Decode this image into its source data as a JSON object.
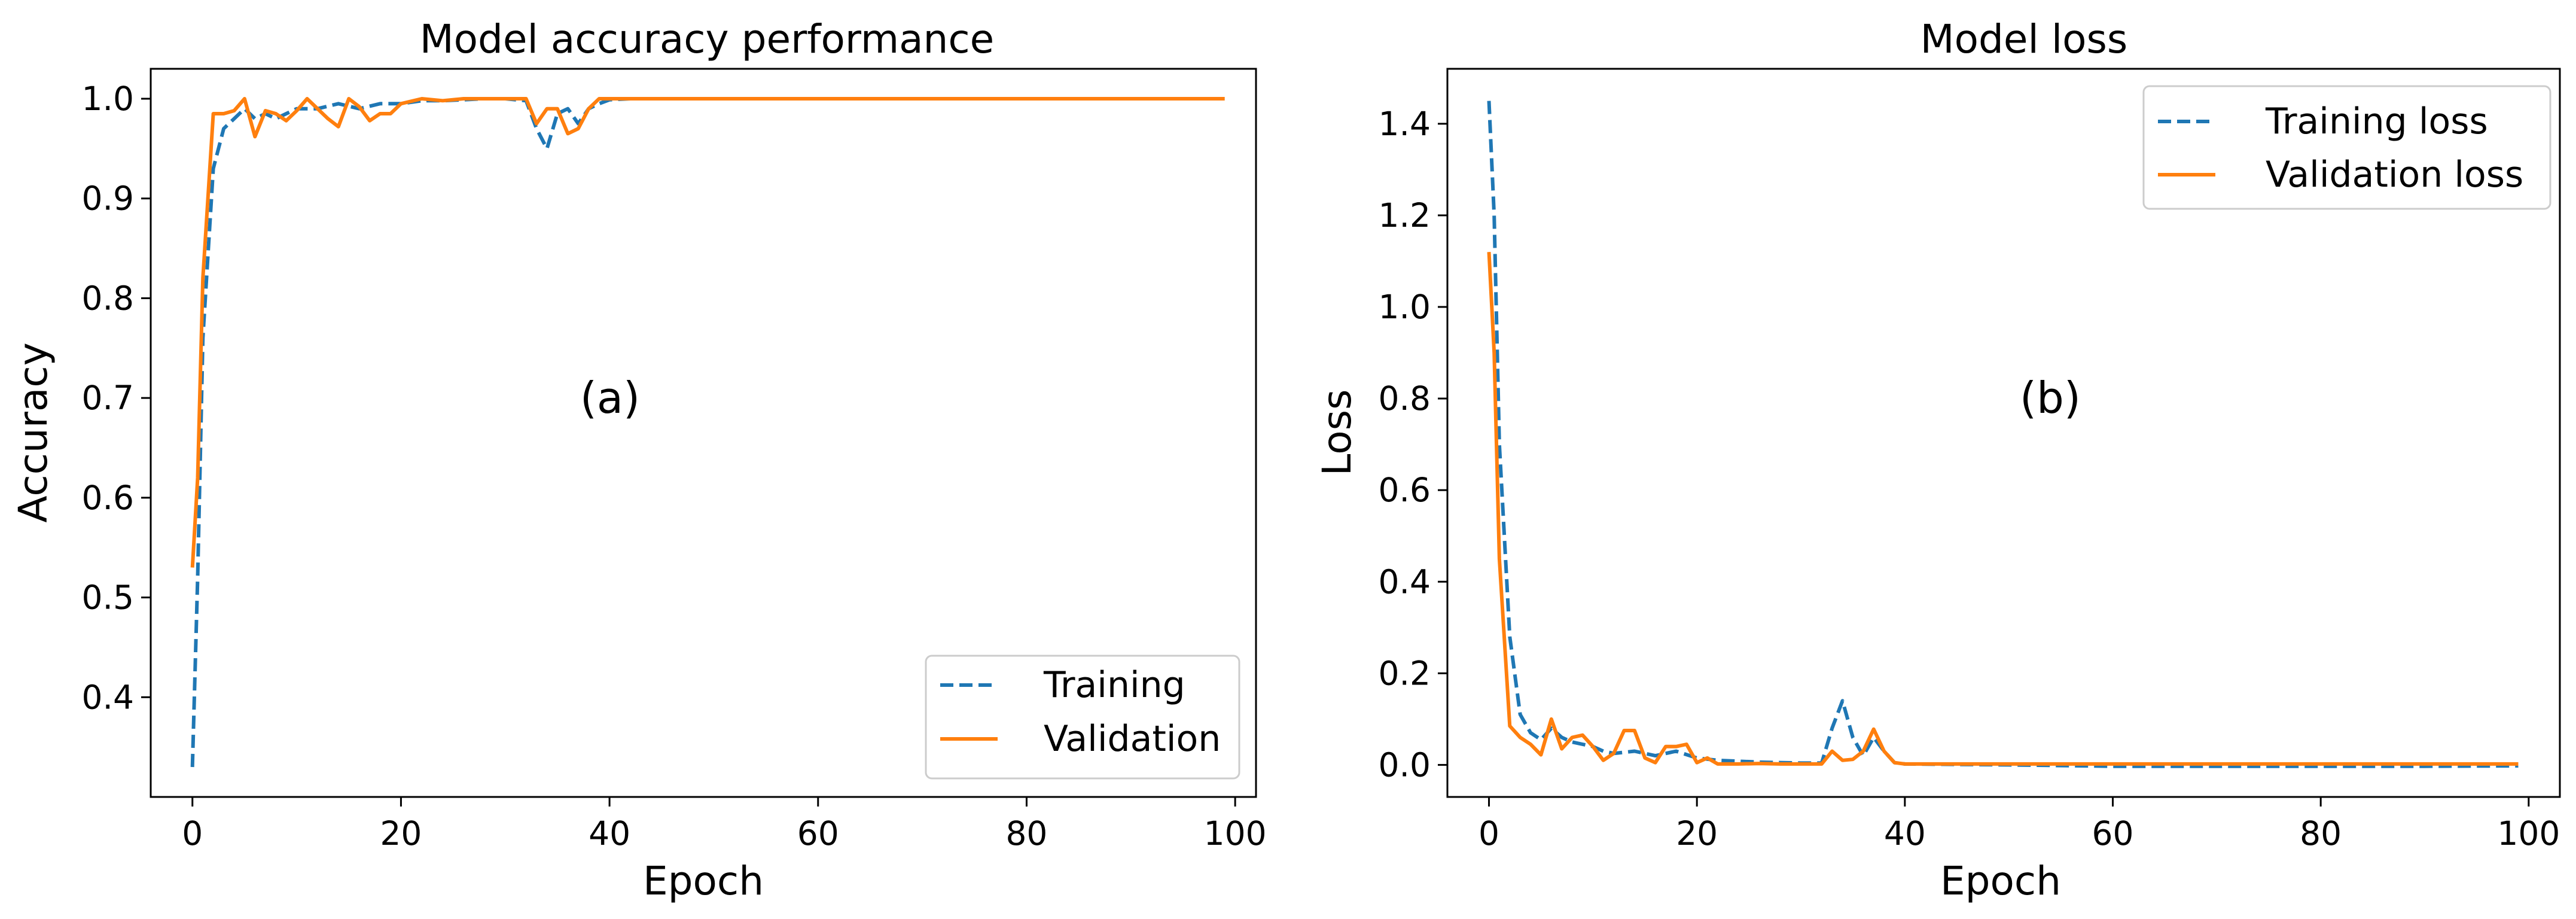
{
  "chart_data": [
    {
      "type": "line",
      "title": "Model accuracy performance",
      "xlabel": "Epoch",
      "ylabel": "Accuracy",
      "panel_label": "(a)",
      "xlim": [
        -4,
        102
      ],
      "ylim": [
        0.3,
        1.03
      ],
      "xticks": [
        0,
        20,
        40,
        60,
        80,
        100
      ],
      "yticks": [
        0.4,
        0.5,
        0.6,
        0.7,
        0.8,
        0.9,
        1.0
      ],
      "xtick_labels": [
        "0",
        "20",
        "40",
        "60",
        "80",
        "100"
      ],
      "ytick_labels": [
        "0.4",
        "0.5",
        "0.6",
        "0.7",
        "0.8",
        "0.9",
        "1.0"
      ],
      "legend_position": "lower-right",
      "series": [
        {
          "name": "Training",
          "color": "#1f77b4",
          "style": "dashed",
          "points": [
            [
              0,
              0.33
            ],
            [
              0.5,
              0.52
            ],
            [
              1,
              0.76
            ],
            [
              2,
              0.93
            ],
            [
              3,
              0.97
            ],
            [
              4,
              0.98
            ],
            [
              5,
              0.99
            ],
            [
              6,
              0.98
            ],
            [
              7,
              0.985
            ],
            [
              8,
              0.98
            ],
            [
              9,
              0.985
            ],
            [
              10,
              0.99
            ],
            [
              12,
              0.99
            ],
            [
              14,
              0.995
            ],
            [
              16,
              0.99
            ],
            [
              18,
              0.995
            ],
            [
              20,
              0.995
            ],
            [
              22,
              0.998
            ],
            [
              24,
              0.998
            ],
            [
              26,
              0.999
            ],
            [
              28,
              1.0
            ],
            [
              30,
              1.0
            ],
            [
              32,
              0.998
            ],
            [
              33,
              0.97
            ],
            [
              34,
              0.95
            ],
            [
              35,
              0.985
            ],
            [
              36,
              0.99
            ],
            [
              37,
              0.975
            ],
            [
              38,
              0.99
            ],
            [
              39,
              0.995
            ],
            [
              40,
              0.999
            ],
            [
              42,
              1.0
            ],
            [
              50,
              1.0
            ],
            [
              60,
              1.0
            ],
            [
              70,
              1.0
            ],
            [
              80,
              1.0
            ],
            [
              90,
              1.0
            ],
            [
              99,
              1.0
            ]
          ]
        },
        {
          "name": "Validation",
          "color": "#ff7f0e",
          "style": "solid",
          "points": [
            [
              0,
              0.53
            ],
            [
              0.5,
              0.62
            ],
            [
              1,
              0.82
            ],
            [
              2,
              0.985
            ],
            [
              3,
              0.985
            ],
            [
              4,
              0.988
            ],
            [
              5,
              1.0
            ],
            [
              6,
              0.962
            ],
            [
              7,
              0.988
            ],
            [
              8,
              0.985
            ],
            [
              9,
              0.978
            ],
            [
              10,
              0.988
            ],
            [
              11,
              1.0
            ],
            [
              12,
              0.99
            ],
            [
              13,
              0.98
            ],
            [
              14,
              0.972
            ],
            [
              15,
              1.0
            ],
            [
              16,
              0.992
            ],
            [
              17,
              0.978
            ],
            [
              18,
              0.985
            ],
            [
              19,
              0.985
            ],
            [
              20,
              0.995
            ],
            [
              22,
              1.0
            ],
            [
              24,
              0.998
            ],
            [
              26,
              1.0
            ],
            [
              28,
              1.0
            ],
            [
              30,
              1.0
            ],
            [
              32,
              1.0
            ],
            [
              33,
              0.975
            ],
            [
              34,
              0.99
            ],
            [
              35,
              0.99
            ],
            [
              36,
              0.965
            ],
            [
              37,
              0.97
            ],
            [
              38,
              0.99
            ],
            [
              39,
              1.0
            ],
            [
              40,
              1.0
            ],
            [
              50,
              1.0
            ],
            [
              60,
              1.0
            ],
            [
              70,
              1.0
            ],
            [
              80,
              1.0
            ],
            [
              90,
              1.0
            ],
            [
              99,
              1.0
            ]
          ]
        }
      ]
    },
    {
      "type": "line",
      "title": "Model loss",
      "xlabel": "Epoch",
      "ylabel": "Loss",
      "panel_label": "(b)",
      "xlim": [
        -4,
        103
      ],
      "ylim": [
        -0.07,
        1.52
      ],
      "xticks": [
        0,
        20,
        40,
        60,
        80,
        100
      ],
      "yticks": [
        0.0,
        0.2,
        0.4,
        0.6,
        0.8,
        1.0,
        1.2,
        1.4
      ],
      "xtick_labels": [
        "0",
        "20",
        "40",
        "60",
        "80",
        "100"
      ],
      "ytick_labels": [
        "0.0",
        "0.2",
        "0.4",
        "0.6",
        "0.8",
        "1.0",
        "1.2",
        "1.4"
      ],
      "legend_position": "upper-right",
      "series": [
        {
          "name": "Training loss",
          "color": "#1f77b4",
          "style": "dashed",
          "points": [
            [
              0,
              1.45
            ],
            [
              0.5,
              1.2
            ],
            [
              1,
              0.7
            ],
            [
              2,
              0.28
            ],
            [
              3,
              0.11
            ],
            [
              4,
              0.07
            ],
            [
              5,
              0.055
            ],
            [
              6,
              0.08
            ],
            [
              7,
              0.06
            ],
            [
              8,
              0.05
            ],
            [
              9,
              0.045
            ],
            [
              10,
              0.04
            ],
            [
              11,
              0.03
            ],
            [
              12,
              0.025
            ],
            [
              14,
              0.03
            ],
            [
              16,
              0.02
            ],
            [
              18,
              0.03
            ],
            [
              20,
              0.015
            ],
            [
              22,
              0.01
            ],
            [
              24,
              0.008
            ],
            [
              26,
              0.006
            ],
            [
              28,
              0.005
            ],
            [
              30,
              0.004
            ],
            [
              32,
              0.004
            ],
            [
              33,
              0.08
            ],
            [
              34,
              0.14
            ],
            [
              35,
              0.06
            ],
            [
              36,
              0.02
            ],
            [
              37,
              0.06
            ],
            [
              38,
              0.03
            ],
            [
              39,
              0.005
            ],
            [
              40,
              0.002
            ],
            [
              50,
              0.0
            ],
            [
              60,
              -0.003
            ],
            [
              70,
              -0.003
            ],
            [
              80,
              -0.003
            ],
            [
              90,
              -0.003
            ],
            [
              99,
              -0.002
            ]
          ]
        },
        {
          "name": "Validation loss",
          "color": "#ff7f0e",
          "style": "solid",
          "points": [
            [
              0,
              1.12
            ],
            [
              0.5,
              0.9
            ],
            [
              1,
              0.45
            ],
            [
              2,
              0.085
            ],
            [
              3,
              0.06
            ],
            [
              4,
              0.045
            ],
            [
              5,
              0.022
            ],
            [
              6,
              0.1
            ],
            [
              7,
              0.035
            ],
            [
              8,
              0.06
            ],
            [
              9,
              0.065
            ],
            [
              10,
              0.04
            ],
            [
              11,
              0.01
            ],
            [
              12,
              0.025
            ],
            [
              13,
              0.075
            ],
            [
              14,
              0.075
            ],
            [
              15,
              0.015
            ],
            [
              16,
              0.005
            ],
            [
              17,
              0.04
            ],
            [
              18,
              0.04
            ],
            [
              19,
              0.045
            ],
            [
              20,
              0.005
            ],
            [
              21,
              0.015
            ],
            [
              22,
              0.002
            ],
            [
              24,
              0.002
            ],
            [
              26,
              0.003
            ],
            [
              28,
              0.002
            ],
            [
              30,
              0.002
            ],
            [
              32,
              0.002
            ],
            [
              33,
              0.03
            ],
            [
              34,
              0.01
            ],
            [
              35,
              0.012
            ],
            [
              36,
              0.03
            ],
            [
              37,
              0.078
            ],
            [
              38,
              0.03
            ],
            [
              39,
              0.005
            ],
            [
              40,
              0.002
            ],
            [
              50,
              0.002
            ],
            [
              60,
              0.002
            ],
            [
              70,
              0.002
            ],
            [
              80,
              0.002
            ],
            [
              90,
              0.002
            ],
            [
              99,
              0.002
            ]
          ]
        }
      ]
    }
  ]
}
